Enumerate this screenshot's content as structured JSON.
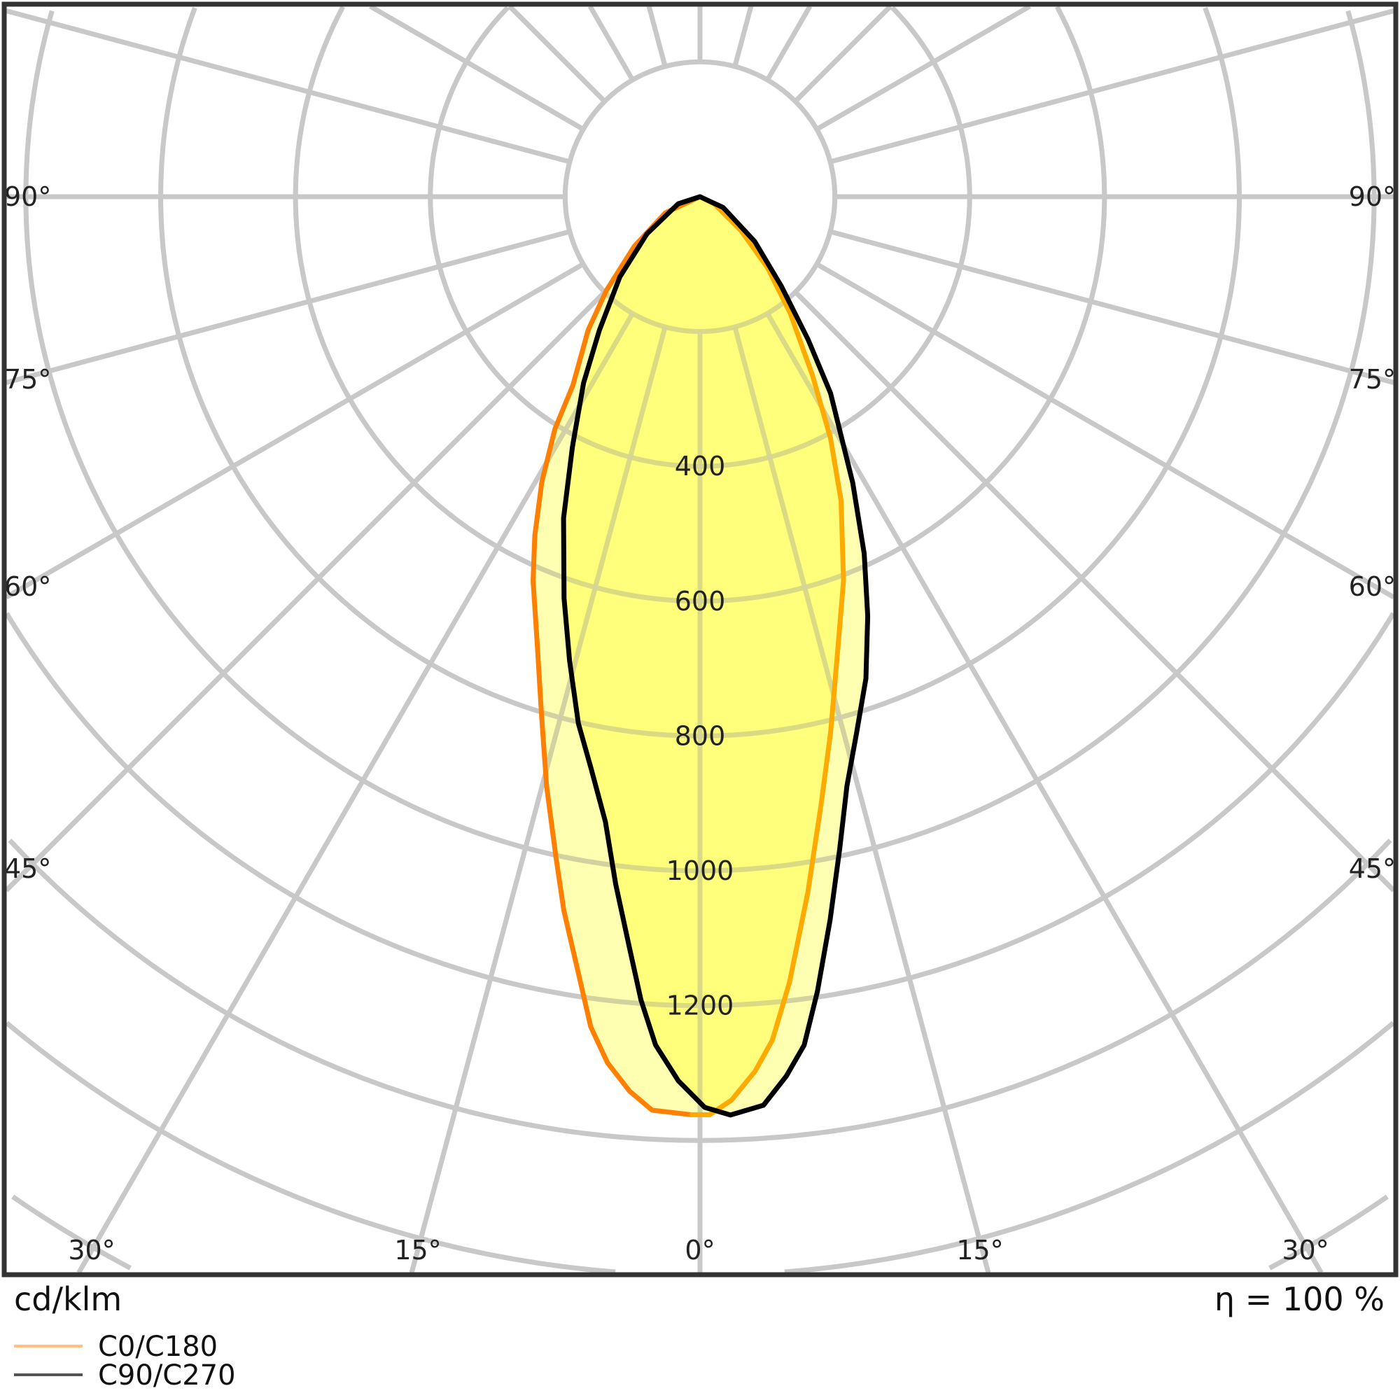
{
  "chart_data": {
    "type": "polar",
    "unit_label": "cd/klm",
    "efficiency_label": "η = 100 %",
    "radial_ticks": [
      400,
      600,
      800,
      1000,
      1200
    ],
    "radial_tick_labels": [
      "400",
      "600",
      "800",
      "1000",
      "1200"
    ],
    "ring_step": 200,
    "spoke_step_deg": 15,
    "angle_labels_side": [
      "90°",
      "75°",
      "60°",
      "45°"
    ],
    "angle_labels_bottom": [
      "30°",
      "15°",
      "0°",
      "15°",
      "30°"
    ],
    "grid": true,
    "legend_position": "bottom-left",
    "fill_color": "#ffff00",
    "series": [
      {
        "name": "C0/C180",
        "color": "#ff8000",
        "color_right": "#ffaa00",
        "legend_color": "#ffc080",
        "angles_deg": [
          -90,
          -65,
          -53,
          -45,
          -40,
          -34,
          -32,
          -29,
          -26,
          -23.5,
          -20,
          -17,
          -14.6,
          -12.3,
          -10.8,
          -8.9,
          -7.5,
          -6.1,
          -4.5,
          -3,
          -0.5,
          0.6,
          2,
          3.6,
          4.9,
          6.5,
          8.8,
          11.3,
          13.7,
          16.8,
          20.5,
          24.9,
          28.4,
          32.2,
          37.8,
          43.5,
          50.4,
          63,
          90
        ],
        "values": [
          0,
          57,
          122,
          196,
          258,
          337,
          406,
          484,
          559,
          621,
          706,
          804,
          903,
          1003,
          1078,
          1166,
          1242,
          1292,
          1331,
          1357,
          1362,
          1362,
          1341,
          1300,
          1256,
          1173,
          1045,
          918,
          818,
          706,
          608,
          497,
          407,
          313,
          218,
          146,
          79,
          24,
          0
        ]
      },
      {
        "name": "C90/C270",
        "color": "#000000",
        "legend_color": "#555555",
        "angles_deg": [
          -90,
          -72,
          -55,
          -45,
          -37,
          -32,
          -27,
          -23,
          -18.7,
          -15.7,
          -13,
          -10.8,
          -8.6,
          -7,
          -5.4,
          -4.2,
          -3,
          -1.4,
          0.3,
          1.9,
          4,
          5.6,
          7,
          8.4,
          10.2,
          12.1,
          14,
          16.3,
          19,
          21.8,
          24.7,
          28.1,
          33.6,
          37.1,
          42.3,
          50.7,
          65,
          90
        ],
        "values": [
          0,
          34,
          96,
          168,
          248,
          326,
          417,
          518,
          629,
          715,
          802,
          863,
          938,
          1027,
          1117,
          1195,
          1260,
          1312,
          1351,
          1363,
          1351,
          1311,
          1268,
          1192,
          1090,
          989,
          901,
          828,
          756,
          670,
          583,
          481,
          350,
          266,
          179,
          105,
          38,
          0
        ]
      }
    ]
  }
}
